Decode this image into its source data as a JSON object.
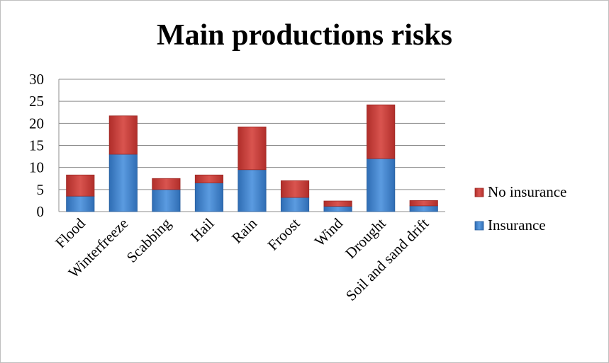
{
  "chart_data": {
    "type": "bar",
    "stacked": true,
    "title": "Main productions risks",
    "xlabel": "",
    "ylabel": "",
    "ylim": [
      0,
      30
    ],
    "yticks": [
      0,
      5,
      10,
      15,
      20,
      25,
      30
    ],
    "grid": true,
    "legend": "right",
    "categories": [
      "Flood",
      "Winterfreeze",
      "Scabbing",
      "Hail",
      "Rain",
      "Froost",
      "Wind",
      "Drought",
      "Soil and sand drift"
    ],
    "series": [
      {
        "name": "Insurance",
        "color": "#4a86cf",
        "values": [
          3.5,
          13,
          5,
          6.5,
          9.5,
          3.2,
          1.2,
          12,
          1.3
        ]
      },
      {
        "name": "No insurance",
        "color": "#c9403c",
        "values": [
          4.8,
          8.7,
          2.5,
          1.8,
          9.7,
          3.8,
          1.2,
          12.2,
          1.2
        ]
      }
    ]
  }
}
